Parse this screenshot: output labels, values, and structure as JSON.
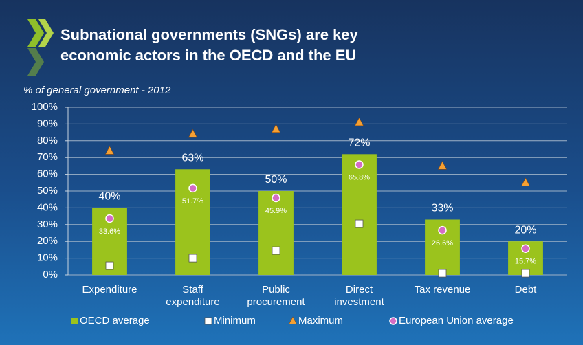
{
  "chart_data": {
    "type": "bar",
    "title": [
      "Subnational governments (SNGs) are key",
      "economic actors in the OECD and the EU"
    ],
    "subtitle": "% of general government - 2012",
    "categories": [
      "Expenditure",
      "Staff\nexpenditure",
      "Public\nprocurement",
      "Direct\ninvestment",
      "Tax revenue",
      "Debt"
    ],
    "ylim": [
      0,
      100
    ],
    "yticks": [
      {
        "value": 0,
        "label": "0%"
      },
      {
        "value": 10,
        "label": "10%"
      },
      {
        "value": 20,
        "label": "20%"
      },
      {
        "value": 30,
        "label": "30%"
      },
      {
        "value": 40,
        "label": "40%"
      },
      {
        "value": 50,
        "label": "50%"
      },
      {
        "value": 60,
        "label": "60%"
      },
      {
        "value": 70,
        "label": "70%"
      },
      {
        "value": 80,
        "label": "80%"
      },
      {
        "value": 90,
        "label": "90%"
      },
      {
        "value": 100,
        "label": "100%"
      }
    ],
    "grid": true,
    "legend": "bottom",
    "series": [
      {
        "name": "OECD average",
        "type": "bar",
        "marker": "square",
        "color": "#9bc31d",
        "values": [
          40,
          63,
          50,
          72,
          33,
          20
        ],
        "value_labels": [
          "40%",
          "63%",
          "50%",
          "72%",
          "33%",
          "20%"
        ]
      },
      {
        "name": "Minimum",
        "type": "scatter",
        "marker": "square",
        "color": "#ffffff",
        "values": [
          5.5,
          10,
          14.5,
          30.5,
          1,
          1
        ]
      },
      {
        "name": "Maximum",
        "type": "scatter",
        "marker": "triangle",
        "color": "#f5a033",
        "values": [
          74,
          84,
          87,
          91,
          65,
          55
        ]
      },
      {
        "name": "European Union average",
        "type": "scatter",
        "marker": "circle",
        "color": "#d46cc4",
        "values": [
          33.6,
          51.7,
          45.9,
          65.8,
          26.6,
          15.7
        ],
        "value_labels": [
          "33.6%",
          "51.7%",
          "45.9%",
          "65.8%",
          "26.6%",
          "15.7%"
        ]
      }
    ]
  }
}
